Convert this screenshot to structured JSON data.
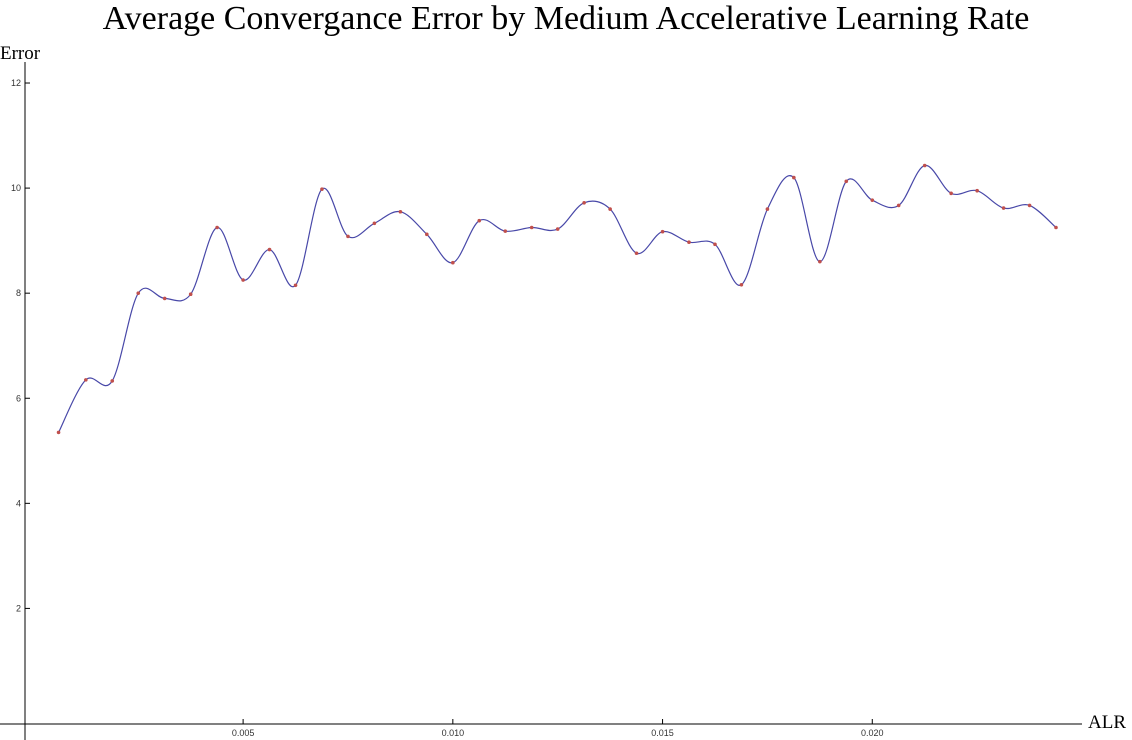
{
  "chart_data": {
    "type": "line",
    "title": "Average Convergance Error by Medium Accelerative Learning Rate",
    "xlabel": "ALR",
    "ylabel": "Error",
    "xlim": [
      -0.0002,
      0.025
    ],
    "ylim": [
      -0.2,
      12.4
    ],
    "x_ticks": [
      0.005,
      0.01,
      0.015,
      0.02
    ],
    "x_tick_labels": [
      "0.005",
      "0.010",
      "0.015",
      "0.020"
    ],
    "y_ticks": [
      2,
      4,
      6,
      8,
      10,
      12
    ],
    "y_tick_labels": [
      "2",
      "4",
      "6",
      "8",
      "10",
      "12"
    ],
    "grid": false,
    "line_color": "#4848a8",
    "point_color": "#c0504d",
    "series": [
      {
        "x": [
          0.0006,
          0.00125,
          0.00188,
          0.0025,
          0.00313,
          0.00375,
          0.00438,
          0.005,
          0.00563,
          0.00625,
          0.00688,
          0.0075,
          0.00813,
          0.00875,
          0.00938,
          0.01,
          0.01063,
          0.01125,
          0.01188,
          0.0125,
          0.01313,
          0.01375,
          0.01438,
          0.015,
          0.01563,
          0.01625,
          0.01688,
          0.0175,
          0.01813,
          0.01875,
          0.01938,
          0.02,
          0.02063,
          0.02125,
          0.02188,
          0.0225,
          0.02313,
          0.02375,
          0.02438
        ],
        "y": [
          5.35,
          6.35,
          6.33,
          8.0,
          7.9,
          7.98,
          9.25,
          8.25,
          8.83,
          8.15,
          9.98,
          9.08,
          9.33,
          9.55,
          9.12,
          8.58,
          9.38,
          9.18,
          9.25,
          9.22,
          9.72,
          9.6,
          8.76,
          9.17,
          8.97,
          8.93,
          8.16,
          9.6,
          10.2,
          8.6,
          10.13,
          9.77,
          9.67,
          10.43,
          9.9,
          9.95,
          9.62,
          9.67,
          9.25
        ]
      }
    ]
  }
}
